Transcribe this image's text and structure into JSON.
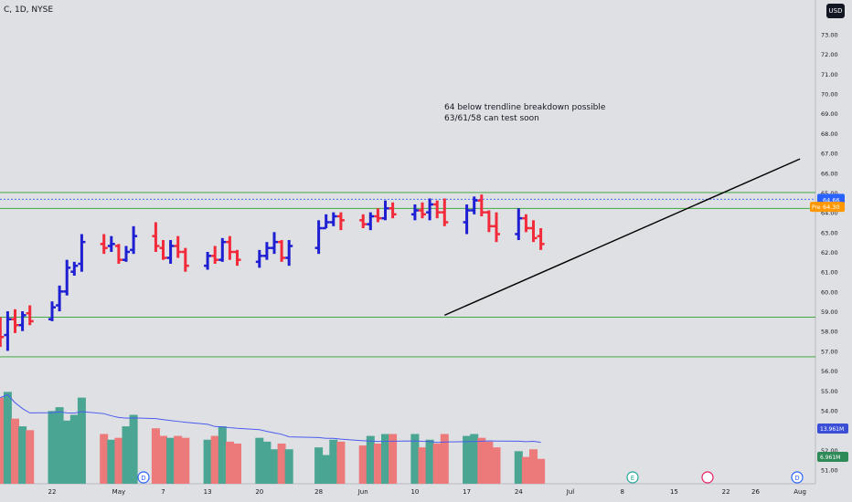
{
  "header": {
    "symbol": "C, 1D, NYSE",
    "currency": "USD"
  },
  "annotations": [
    "64 below trendline breakdown possible",
    "63/61/58 can test soon"
  ],
  "colors": {
    "up": "#1e1ed2",
    "down": "#f22a3a",
    "vol_up": "#4aa593",
    "vol_down": "#ec7a7a",
    "ma": "#4a5bf0",
    "bg": "#dfe0e3",
    "hline": "#2ca02c",
    "trend": "#000000",
    "last_price": "#2962ff",
    "pre_market": "#ff9800"
  },
  "chart_data": {
    "type": "ohlc",
    "title": "C, 1D, NYSE",
    "price_axis": {
      "ylim": [
        50.5,
        74.0
      ],
      "ticks": [
        51,
        52,
        53,
        54,
        55,
        56,
        57,
        58,
        59,
        60,
        61,
        62,
        63,
        64,
        65,
        66,
        67,
        68,
        69,
        70,
        71,
        72,
        73
      ],
      "tick_labels": [
        "51.00",
        "52.00",
        "53.00",
        "54.00",
        "55.00",
        "56.00",
        "57.00",
        "58.00",
        "59.00",
        "60.00",
        "61.00",
        "62.00",
        "63.00",
        "64.00",
        "65.00",
        "66.00",
        "67.00",
        "68.00",
        "69.00",
        "70.00",
        "71.00",
        "72.00",
        "73.00"
      ]
    },
    "x_ticks": [
      {
        "label": "22",
        "date": "2024-04-22"
      },
      {
        "label": "May",
        "date": "2024-05-01"
      },
      {
        "label": "7",
        "date": "2024-05-07"
      },
      {
        "label": "13",
        "date": "2024-05-13"
      },
      {
        "label": "20",
        "date": "2024-05-20"
      },
      {
        "label": "28",
        "date": "2024-05-28"
      },
      {
        "label": "Jun",
        "date": "2024-06-03"
      },
      {
        "label": "10",
        "date": "2024-06-10"
      },
      {
        "label": "17",
        "date": "2024-06-17"
      },
      {
        "label": "24",
        "date": "2024-06-24"
      },
      {
        "label": "Jul",
        "date": "2024-07-01"
      },
      {
        "label": "8",
        "date": "2024-07-08"
      },
      {
        "label": "15",
        "date": "2024-07-15"
      },
      {
        "label": "22",
        "date": "2024-07-22"
      },
      {
        "label": "26",
        "date": "2024-07-26"
      },
      {
        "label": "Aug",
        "date": "2024-08-01"
      }
    ],
    "ohlc": [
      {
        "date": "2024-04-15",
        "o": 58.5,
        "h": 58.7,
        "l": 57.2,
        "c": 57.7,
        "v": 45
      },
      {
        "date": "2024-04-16",
        "o": 57.8,
        "h": 59.0,
        "l": 57.0,
        "c": 58.6,
        "v": 48
      },
      {
        "date": "2024-04-17",
        "o": 58.6,
        "h": 59.1,
        "l": 57.9,
        "c": 58.3,
        "v": 34
      },
      {
        "date": "2024-04-18",
        "o": 58.3,
        "h": 59.0,
        "l": 58.0,
        "c": 58.8,
        "v": 30
      },
      {
        "date": "2024-04-19",
        "o": 58.9,
        "h": 59.3,
        "l": 58.3,
        "c": 58.5,
        "v": 28
      },
      {
        "date": "2024-04-22",
        "o": 58.6,
        "h": 59.5,
        "l": 58.5,
        "c": 59.2,
        "v": 38
      },
      {
        "date": "2024-04-23",
        "o": 59.3,
        "h": 60.3,
        "l": 59.0,
        "c": 60.0,
        "v": 40
      },
      {
        "date": "2024-04-24",
        "o": 60.0,
        "h": 61.6,
        "l": 59.8,
        "c": 61.2,
        "v": 33
      },
      {
        "date": "2024-04-25",
        "o": 61.0,
        "h": 61.5,
        "l": 60.8,
        "c": 61.3,
        "v": 36
      },
      {
        "date": "2024-04-26",
        "o": 61.4,
        "h": 62.9,
        "l": 61.0,
        "c": 62.5,
        "v": 45
      },
      {
        "date": "2024-04-29",
        "o": 62.4,
        "h": 62.9,
        "l": 61.9,
        "c": 62.2,
        "v": 26
      },
      {
        "date": "2024-04-30",
        "o": 62.3,
        "h": 62.8,
        "l": 62.0,
        "c": 62.4,
        "v": 23
      },
      {
        "date": "2024-05-01",
        "o": 62.3,
        "h": 62.4,
        "l": 61.4,
        "c": 61.6,
        "v": 24
      },
      {
        "date": "2024-05-02",
        "o": 61.6,
        "h": 62.3,
        "l": 61.5,
        "c": 62.0,
        "v": 30
      },
      {
        "date": "2024-05-03",
        "o": 62.1,
        "h": 63.3,
        "l": 61.9,
        "c": 62.8,
        "v": 36
      },
      {
        "date": "2024-05-06",
        "o": 62.8,
        "h": 63.5,
        "l": 62.0,
        "c": 62.3,
        "v": 29
      },
      {
        "date": "2024-05-07",
        "o": 62.2,
        "h": 62.6,
        "l": 61.6,
        "c": 61.7,
        "v": 25
      },
      {
        "date": "2024-05-08",
        "o": 61.7,
        "h": 62.6,
        "l": 61.4,
        "c": 62.3,
        "v": 24
      },
      {
        "date": "2024-05-09",
        "o": 62.3,
        "h": 62.8,
        "l": 61.7,
        "c": 62.0,
        "v": 25
      },
      {
        "date": "2024-05-10",
        "o": 62.0,
        "h": 62.2,
        "l": 61.0,
        "c": 61.3,
        "v": 24
      },
      {
        "date": "2024-05-13",
        "o": 61.3,
        "h": 62.0,
        "l": 61.1,
        "c": 61.8,
        "v": 23
      },
      {
        "date": "2024-05-14",
        "o": 61.8,
        "h": 62.3,
        "l": 61.4,
        "c": 61.6,
        "v": 25
      },
      {
        "date": "2024-05-15",
        "o": 61.6,
        "h": 62.7,
        "l": 61.5,
        "c": 62.5,
        "v": 30
      },
      {
        "date": "2024-05-16",
        "o": 62.5,
        "h": 62.8,
        "l": 61.6,
        "c": 62.0,
        "v": 22
      },
      {
        "date": "2024-05-17",
        "o": 62.0,
        "h": 62.1,
        "l": 61.3,
        "c": 61.6,
        "v": 21
      },
      {
        "date": "2024-05-20",
        "o": 61.5,
        "h": 62.1,
        "l": 61.2,
        "c": 61.8,
        "v": 24
      },
      {
        "date": "2024-05-21",
        "o": 61.8,
        "h": 62.5,
        "l": 61.6,
        "c": 62.2,
        "v": 22
      },
      {
        "date": "2024-05-22",
        "o": 62.2,
        "h": 63.0,
        "l": 61.9,
        "c": 62.5,
        "v": 18
      },
      {
        "date": "2024-05-23",
        "o": 62.5,
        "h": 62.6,
        "l": 61.5,
        "c": 61.7,
        "v": 21
      },
      {
        "date": "2024-05-24",
        "o": 61.7,
        "h": 62.6,
        "l": 61.3,
        "c": 62.3,
        "v": 18
      },
      {
        "date": "2024-05-28",
        "o": 62.2,
        "h": 63.6,
        "l": 61.9,
        "c": 63.2,
        "v": 19
      },
      {
        "date": "2024-05-29",
        "o": 63.2,
        "h": 63.9,
        "l": 63.2,
        "c": 63.5,
        "v": 15
      },
      {
        "date": "2024-05-30",
        "o": 63.5,
        "h": 64.0,
        "l": 63.3,
        "c": 63.8,
        "v": 23
      },
      {
        "date": "2024-05-31",
        "o": 63.8,
        "h": 64.0,
        "l": 63.1,
        "c": 63.6,
        "v": 22
      },
      {
        "date": "2024-06-03",
        "o": 63.6,
        "h": 63.9,
        "l": 63.2,
        "c": 63.4,
        "v": 20
      },
      {
        "date": "2024-06-04",
        "o": 63.4,
        "h": 64.0,
        "l": 63.1,
        "c": 63.8,
        "v": 25
      },
      {
        "date": "2024-06-05",
        "o": 63.8,
        "h": 64.2,
        "l": 63.5,
        "c": 63.7,
        "v": 21
      },
      {
        "date": "2024-06-06",
        "o": 63.7,
        "h": 64.6,
        "l": 63.6,
        "c": 64.2,
        "v": 26
      },
      {
        "date": "2024-06-07",
        "o": 64.2,
        "h": 64.5,
        "l": 63.7,
        "c": 63.9,
        "v": 26
      },
      {
        "date": "2024-06-10",
        "o": 63.9,
        "h": 64.4,
        "l": 63.6,
        "c": 64.1,
        "v": 26
      },
      {
        "date": "2024-06-11",
        "o": 64.1,
        "h": 64.5,
        "l": 63.7,
        "c": 63.9,
        "v": 19
      },
      {
        "date": "2024-06-12",
        "o": 64.0,
        "h": 64.7,
        "l": 63.6,
        "c": 64.4,
        "v": 23
      },
      {
        "date": "2024-06-13",
        "o": 64.4,
        "h": 64.6,
        "l": 63.7,
        "c": 64.0,
        "v": 21
      },
      {
        "date": "2024-06-14",
        "o": 64.0,
        "h": 64.7,
        "l": 63.3,
        "c": 63.5,
        "v": 26
      },
      {
        "date": "2024-06-17",
        "o": 63.5,
        "h": 64.4,
        "l": 62.9,
        "c": 64.1,
        "v": 25
      },
      {
        "date": "2024-06-18",
        "o": 64.1,
        "h": 64.8,
        "l": 63.9,
        "c": 64.6,
        "v": 26
      },
      {
        "date": "2024-06-19",
        "o": 64.6,
        "h": 64.9,
        "l": 63.8,
        "c": 64.0,
        "v": 24
      },
      {
        "date": "2024-06-20",
        "o": 64.0,
        "h": 64.1,
        "l": 63.0,
        "c": 63.3,
        "v": 22
      },
      {
        "date": "2024-06-21",
        "o": 63.3,
        "h": 64.0,
        "l": 62.5,
        "c": 62.9,
        "v": 19
      },
      {
        "date": "2024-06-24",
        "o": 62.9,
        "h": 64.2,
        "l": 62.6,
        "c": 63.7,
        "v": 17
      },
      {
        "date": "2024-06-25",
        "o": 63.7,
        "h": 63.9,
        "l": 63.0,
        "c": 63.2,
        "v": 14
      },
      {
        "date": "2024-06-26",
        "o": 63.2,
        "h": 63.6,
        "l": 62.5,
        "c": 62.7,
        "v": 18
      },
      {
        "date": "2024-06-27",
        "o": 62.8,
        "h": 63.2,
        "l": 62.1,
        "c": 62.4,
        "v": 13
      }
    ],
    "volume_axis": {
      "labels": [
        "13.961M",
        "6.961M"
      ]
    },
    "horizontal_lines": [
      65.0,
      64.66,
      64.2,
      58.7,
      56.7
    ],
    "trendline": {
      "from": {
        "date": "2024-06-14",
        "price": 58.8
      },
      "to": {
        "date": "2024-08-01",
        "price": 66.7
      }
    },
    "price_labels": [
      {
        "name": "last",
        "value": "64.66"
      },
      {
        "name": "pre-market",
        "tag": "Pre",
        "value": "64.30"
      }
    ]
  }
}
